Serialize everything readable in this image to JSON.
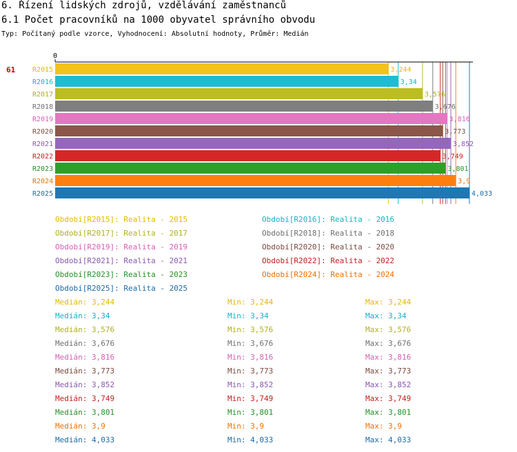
{
  "header": {
    "title": "6. Řízení lidských zdrojů, vzdělávání zaměstnanců",
    "subtitle": "6.1 Počet pracovníků na 1000 obyvatel správního obvodu",
    "type_line": "Typ: Počítaný podle vzorce, Vyhodnocení: Absolutní hodnoty, Průměr: Medián"
  },
  "chart_data": {
    "type": "bar",
    "orientation": "horizontal",
    "title": "6.1 Počet pracovníků na 1000 obyvatel správního obvodu",
    "axis_zero_label": "0",
    "rank_label": "61",
    "xlim": [
      0,
      4.033
    ],
    "categories": [
      "R2015",
      "R2016",
      "R2017",
      "R2018",
      "R2019",
      "R2020",
      "R2021",
      "R2022",
      "R2023",
      "R2024",
      "R2025"
    ],
    "values": [
      3.244,
      3.34,
      3.576,
      3.676,
      3.816,
      3.773,
      3.852,
      3.749,
      3.801,
      3.9,
      4.033
    ],
    "value_labels": [
      "3,244",
      "3,34",
      "3,576",
      "3,676",
      "3,816",
      "3,773",
      "3,852",
      "3,749",
      "3,801",
      "3,9",
      "4,033"
    ],
    "colors": [
      "#f2c318",
      "#1fbcd2",
      "#bcbd22",
      "#7f7f7f",
      "#e377c2",
      "#8c564b",
      "#9467bd",
      "#d62728",
      "#2ca02c",
      "#ff7f0e",
      "#1f77b4"
    ],
    "label_colors": [
      "#e5b800",
      "#17b0c8",
      "#b0b01f",
      "#6e6e6e",
      "#d65fb5",
      "#7a4a40",
      "#8758b0",
      "#c41e1e",
      "#249024",
      "#f07000",
      "#1a6aa8"
    ]
  },
  "legend": [
    {
      "label": "Období[R2015]: Realita - 2015"
    },
    {
      "label": "Období[R2016]: Realita - 2016"
    },
    {
      "label": "Období[R2017]: Realita - 2017"
    },
    {
      "label": "Období[R2018]: Realita - 2018"
    },
    {
      "label": "Období[R2019]: Realita - 2019"
    },
    {
      "label": "Období[R2020]: Realita - 2020"
    },
    {
      "label": "Období[R2021]: Realita - 2021"
    },
    {
      "label": "Období[R2022]: Realita - 2022"
    },
    {
      "label": "Období[R2023]: Realita - 2023"
    },
    {
      "label": "Období[R2024]: Realita - 2024"
    },
    {
      "label": "Období[R2025]: Realita - 2025"
    }
  ],
  "stats": [
    {
      "median": "Medián: 3,244",
      "min": "Min: 3,244",
      "max": "Max: 3,244"
    },
    {
      "median": "Medián: 3,34",
      "min": "Min: 3,34",
      "max": "Max: 3,34"
    },
    {
      "median": "Medián: 3,576",
      "min": "Min: 3,576",
      "max": "Max: 3,576"
    },
    {
      "median": "Medián: 3,676",
      "min": "Min: 3,676",
      "max": "Max: 3,676"
    },
    {
      "median": "Medián: 3,816",
      "min": "Min: 3,816",
      "max": "Max: 3,816"
    },
    {
      "median": "Medián: 3,773",
      "min": "Min: 3,773",
      "max": "Max: 3,773"
    },
    {
      "median": "Medián: 3,852",
      "min": "Min: 3,852",
      "max": "Max: 3,852"
    },
    {
      "median": "Medián: 3,749",
      "min": "Min: 3,749",
      "max": "Max: 3,749"
    },
    {
      "median": "Medián: 3,801",
      "min": "Min: 3,801",
      "max": "Max: 3,801"
    },
    {
      "median": "Medián: 3,9",
      "min": "Min: 3,9",
      "max": "Max: 3,9"
    },
    {
      "median": "Medián: 4,033",
      "min": "Min: 4,033",
      "max": "Max: 4,033"
    }
  ]
}
